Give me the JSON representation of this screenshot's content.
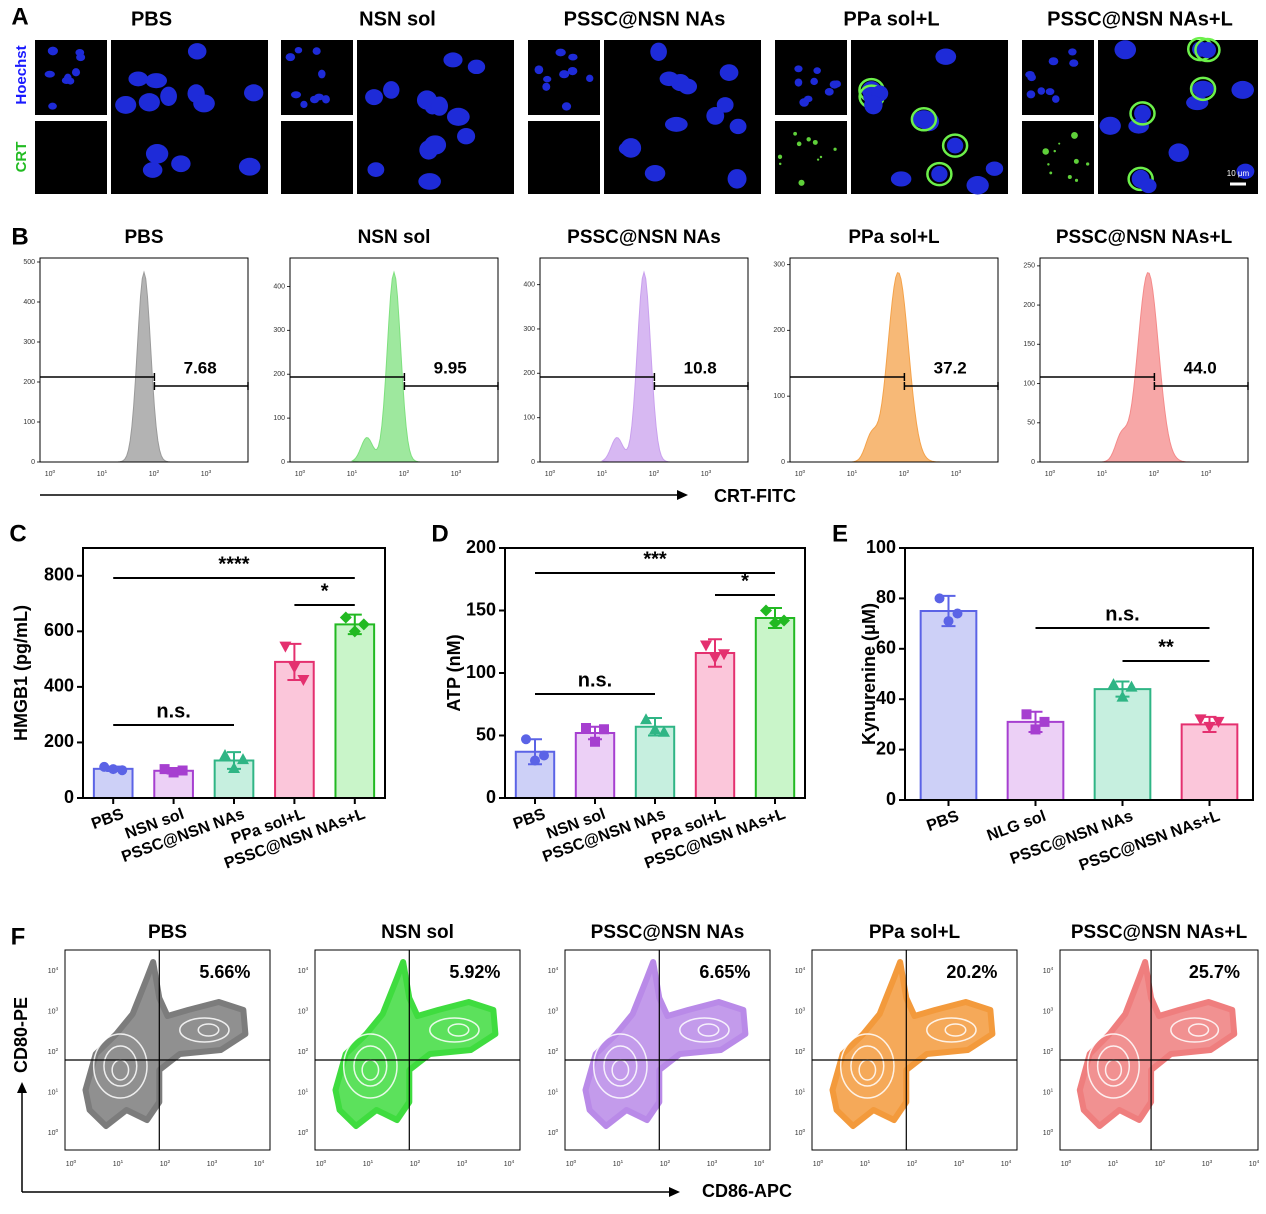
{
  "figure": {
    "A": {
      "label": "A",
      "groups": [
        "PBS",
        "NSN sol",
        "PSSC@NSN NAs",
        "PPa sol+L",
        "PSSC@NSN NAs+L"
      ],
      "stains": [
        "Hoechst",
        "CRT"
      ],
      "scale_bar": "10 μm"
    },
    "B": {
      "label": "B",
      "axis_label": "CRT-FITC",
      "tick_base": "10",
      "xtick_exponents": [
        "0",
        "1",
        "2",
        "3"
      ],
      "plots": [
        {
          "title": "PBS",
          "gate": "7.68",
          "ylim": [
            0,
            510
          ],
          "yticks": [
            0,
            100,
            200,
            300,
            400,
            500
          ],
          "color": "#9a9a9a"
        },
        {
          "title": "NSN sol",
          "gate": "9.95",
          "ylim": [
            0,
            465
          ],
          "yticks": [
            0,
            100,
            200,
            300,
            400
          ],
          "color": "#7ee07e"
        },
        {
          "title": "PSSC@NSN NAs",
          "gate": "10.8",
          "ylim": [
            0,
            460
          ],
          "yticks": [
            0,
            100,
            200,
            300,
            400
          ],
          "color": "#c9a0ee"
        },
        {
          "title": "PPa sol+L",
          "gate": "37.2",
          "ylim": [
            0,
            310
          ],
          "yticks": [
            0,
            100,
            200,
            300
          ],
          "color": "#f4a24a"
        },
        {
          "title": "PSSC@NSN NAs+L",
          "gate": "44.0",
          "ylim": [
            0,
            260
          ],
          "yticks": [
            0,
            50,
            100,
            150,
            200,
            250
          ],
          "color": "#f48a8a"
        }
      ]
    },
    "F": {
      "label": "F",
      "x_axis_label": "CD86-APC",
      "y_axis_label": "CD80-PE",
      "tick_base": "10",
      "tick_exponents": [
        "0",
        "1",
        "2",
        "3",
        "4"
      ],
      "plots": [
        {
          "title": "PBS",
          "quadrant": "5.66%",
          "color": "#7c7c7c"
        },
        {
          "title": "NSN sol",
          "quadrant": "5.92%",
          "color": "#3fdc3f"
        },
        {
          "title": "PSSC@NSN NAs",
          "quadrant": "6.65%",
          "color": "#b98ae8"
        },
        {
          "title": "PPa sol+L",
          "quadrant": "20.2%",
          "color": "#f39a3c"
        },
        {
          "title": "PSSC@NSN NAs+L",
          "quadrant": "25.7%",
          "color": "#ef7e7e"
        }
      ]
    }
  },
  "chart_data": [
    {
      "type": "bar",
      "panel": "C",
      "ylabel": "HMGB1 (pg/mL)",
      "categories": [
        "PBS",
        "NSN sol",
        "PSSC@NSN NAs",
        "PPa sol+L",
        "PSSC@NSN NAs+L"
      ],
      "values": [
        105,
        98,
        135,
        490,
        625
      ],
      "errors": [
        8,
        10,
        30,
        65,
        35
      ],
      "points": [
        [
          112,
          104,
          100
        ],
        [
          104,
          92,
          99
        ],
        [
          155,
          108,
          140
        ],
        [
          545,
          470,
          425
        ],
        [
          650,
          600,
          625
        ]
      ],
      "colors": [
        "#5b63e6",
        "#a63fd0",
        "#2fb585",
        "#e4306f",
        "#22b922"
      ],
      "fills": [
        "#cdd0f7",
        "#ecd0f6",
        "#c6efdf",
        "#fbc6da",
        "#c9f5c9"
      ],
      "markers": [
        "circle",
        "square",
        "triangle",
        "triangle-down",
        "diamond"
      ],
      "ylim": [
        0,
        900
      ],
      "yticks": [
        0,
        200,
        400,
        600,
        800
      ],
      "annotations": [
        "****",
        "*",
        "n.s."
      ]
    },
    {
      "type": "bar",
      "panel": "D",
      "ylabel": "ATP (nM)",
      "categories": [
        "PBS",
        "NSN sol",
        "PSSC@NSN NAs",
        "PPa sol+L",
        "PSSC@NSN NAs+L"
      ],
      "values": [
        37,
        52,
        57,
        116,
        144
      ],
      "errors": [
        10,
        5,
        7,
        11,
        8
      ],
      "points": [
        [
          47,
          30,
          34
        ],
        [
          56,
          45,
          55
        ],
        [
          63,
          55,
          53
        ],
        [
          122,
          112,
          115
        ],
        [
          150,
          140,
          142
        ]
      ],
      "colors": [
        "#5b63e6",
        "#a63fd0",
        "#2fb585",
        "#e4306f",
        "#22b922"
      ],
      "fills": [
        "#cdd0f7",
        "#ecd0f6",
        "#c6efdf",
        "#fbc6da",
        "#c9f5c9"
      ],
      "markers": [
        "circle",
        "square",
        "triangle",
        "triangle-down",
        "diamond"
      ],
      "ylim": [
        0,
        200
      ],
      "yticks": [
        0,
        50,
        100,
        150,
        200
      ],
      "annotations": [
        "***",
        "*",
        "n.s."
      ]
    },
    {
      "type": "bar",
      "panel": "E",
      "ylabel": "Kynurenine (μM)",
      "categories": [
        "PBS",
        "NLG sol",
        "PSSC@NSN NAs",
        "PSSC@NSN NAs+L"
      ],
      "values": [
        75,
        31,
        44,
        30
      ],
      "errors": [
        6,
        4,
        3,
        3
      ],
      "points": [
        [
          80,
          71,
          74
        ],
        [
          34,
          28,
          31
        ],
        [
          46,
          41,
          45
        ],
        [
          32,
          29,
          31
        ]
      ],
      "colors": [
        "#5b63e6",
        "#a63fd0",
        "#2fb585",
        "#e4306f"
      ],
      "fills": [
        "#cdd0f7",
        "#ecd0f6",
        "#c6efdf",
        "#fbc6da"
      ],
      "markers": [
        "circle",
        "square",
        "triangle",
        "triangle-down"
      ],
      "ylim": [
        0,
        100
      ],
      "yticks": [
        0,
        20,
        40,
        60,
        80,
        100
      ],
      "annotations": [
        "n.s.",
        "**"
      ]
    }
  ]
}
